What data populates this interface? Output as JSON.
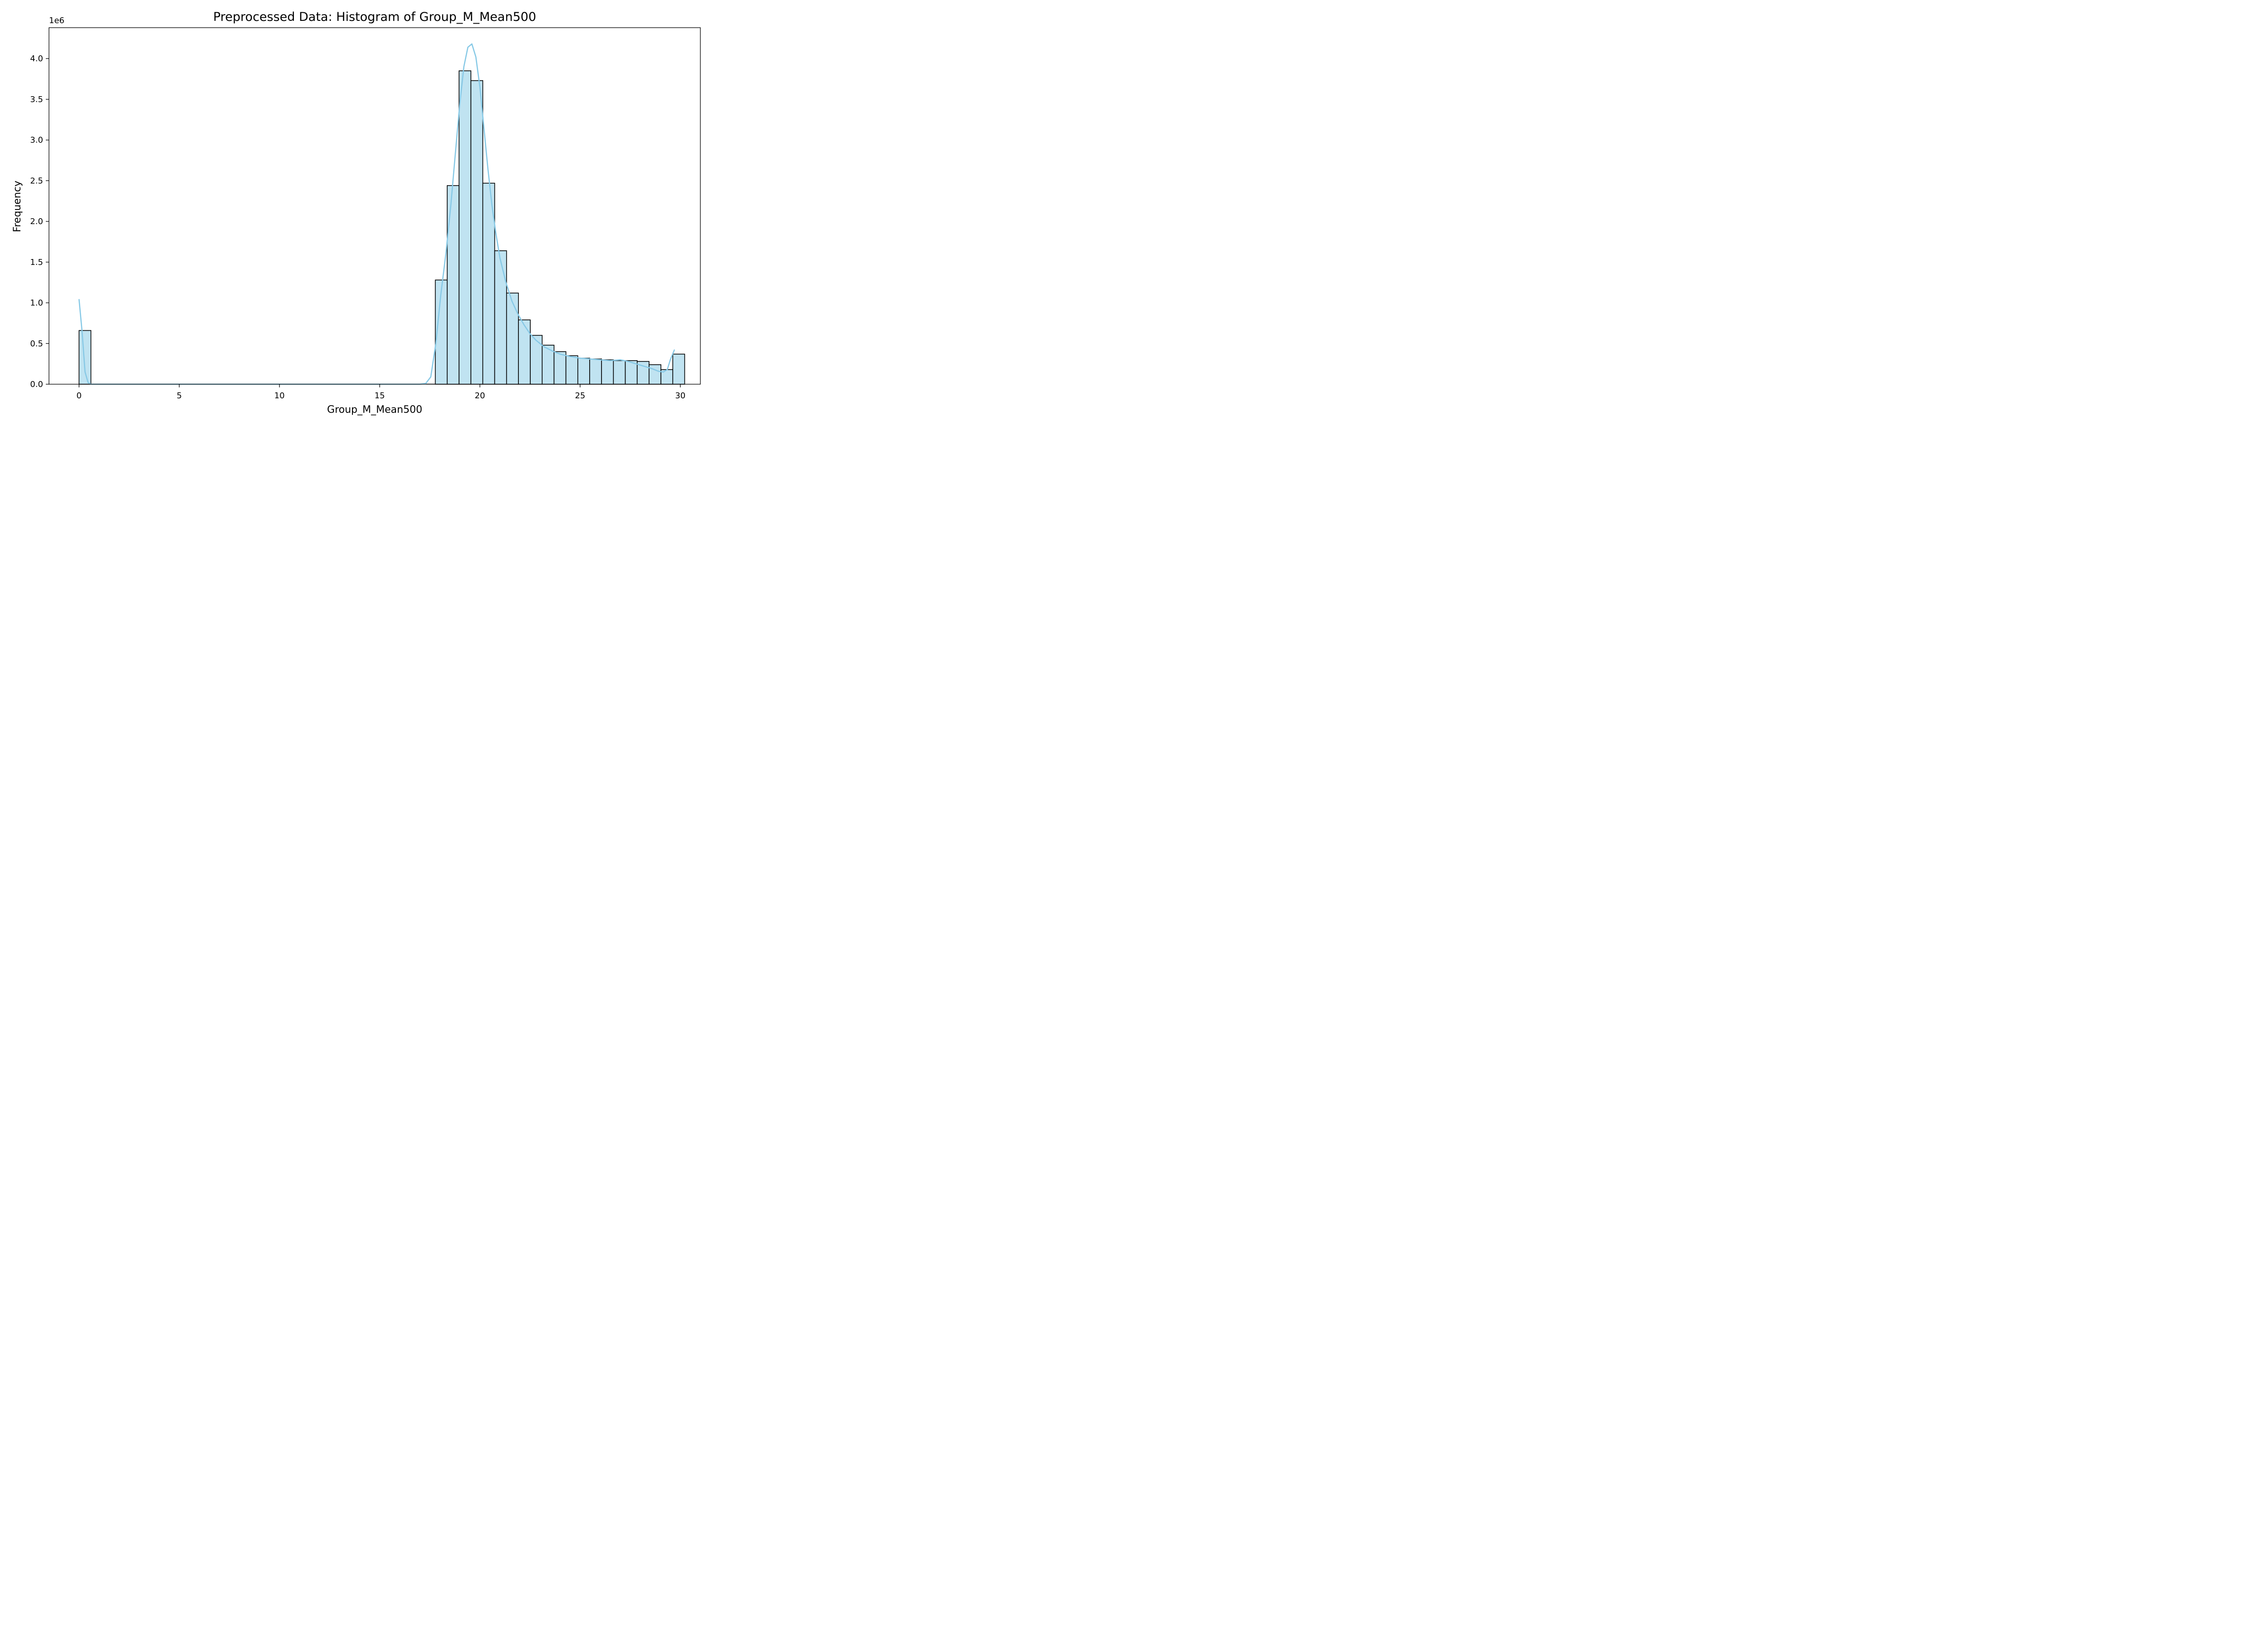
{
  "chart_data": {
    "type": "bar",
    "subtype": "histogram",
    "title": "Preprocessed Data: Histogram of Group_M_Mean500",
    "xlabel": "Group_M_Mean500",
    "ylabel": "Frequency",
    "y_offset_label": "1e6",
    "xlim": [
      -1.5,
      31.0
    ],
    "ylim": [
      0,
      4.38
    ],
    "y_unit_multiplier": 1000000,
    "xticks": [
      0,
      5,
      10,
      15,
      20,
      25,
      30
    ],
    "yticks": [
      0.0,
      0.5,
      1.0,
      1.5,
      2.0,
      2.5,
      3.0,
      3.5,
      4.0
    ],
    "ytick_labels": [
      "0.0",
      "0.5",
      "1.0",
      "1.5",
      "2.0",
      "2.5",
      "3.0",
      "3.5",
      "4.0"
    ],
    "grid": false,
    "legend": "none",
    "bar_color": "#c0e3f1",
    "bar_edge_color": "#000000",
    "kde_color": "#87c9e6",
    "bins": {
      "start": 0.0,
      "width": 0.5925,
      "counts_millions": [
        0.66,
        0,
        0,
        0,
        0,
        0,
        0,
        0,
        0,
        0,
        0,
        0,
        0,
        0,
        0,
        0,
        0,
        0,
        0,
        0,
        0,
        0,
        0,
        0,
        0,
        0,
        0,
        0,
        0,
        0,
        1.28,
        2.44,
        3.85,
        3.73,
        2.47,
        1.64,
        1.12,
        0.79,
        0.6,
        0.48,
        0.4,
        0.35,
        0.32,
        0.31,
        0.3,
        0.29,
        0.29,
        0.28,
        0.24,
        0.18,
        0.37
      ]
    },
    "kde": {
      "x": [
        0.0,
        0.15,
        0.3,
        0.45,
        0.6,
        17.0,
        17.3,
        17.55,
        17.8,
        18.05,
        18.3,
        18.55,
        18.8,
        19.0,
        19.2,
        19.4,
        19.6,
        19.8,
        20.0,
        20.2,
        20.4,
        20.6,
        20.8,
        21.0,
        21.3,
        21.6,
        21.9,
        22.2,
        22.5,
        22.8,
        23.2,
        23.6,
        24.0,
        24.5,
        25.0,
        25.5,
        26.0,
        26.5,
        27.0,
        27.4,
        27.8,
        28.2,
        28.6,
        28.9,
        29.15,
        29.35,
        29.5,
        29.7
      ],
      "y_millions": [
        1.04,
        0.65,
        0.15,
        0.02,
        0.0,
        0.0,
        0.01,
        0.09,
        0.5,
        1.1,
        1.6,
        2.2,
        2.9,
        3.45,
        3.9,
        4.14,
        4.18,
        4.02,
        3.65,
        3.15,
        2.65,
        2.2,
        1.85,
        1.55,
        1.25,
        1.02,
        0.86,
        0.73,
        0.62,
        0.54,
        0.46,
        0.41,
        0.37,
        0.34,
        0.32,
        0.31,
        0.3,
        0.29,
        0.3,
        0.28,
        0.25,
        0.22,
        0.19,
        0.16,
        0.15,
        0.18,
        0.3,
        0.42
      ]
    }
  }
}
